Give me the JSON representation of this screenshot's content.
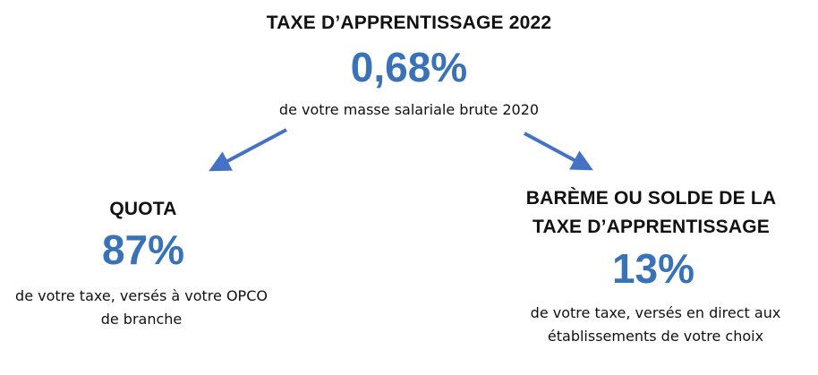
{
  "top": {
    "title": "TAXE D’APPRENTISSAGE 2022",
    "percentage": "0,68%",
    "description": "de votre masse salariale brute 2020"
  },
  "left": {
    "title": "QUOTA",
    "percentage": "87%",
    "description_line1": "de votre taxe, versés à votre OPCO",
    "description_line2": "de branche"
  },
  "right": {
    "title_line1": "BARÈME OU SOLDE DE LA",
    "title_line2": "TAXE D’APPRENTISSAGE",
    "percentage": "13%",
    "description_line1": "de votre taxe, versés en direct aux",
    "description_line2": "établissements de votre choix"
  },
  "colors": {
    "accent": "#3a72b9",
    "text": "#111111",
    "arrow": "#4472c4"
  }
}
